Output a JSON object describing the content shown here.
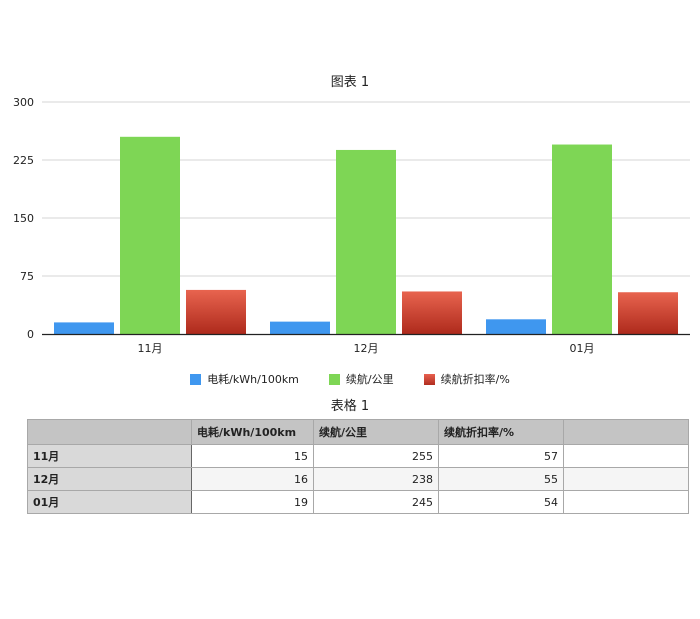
{
  "chart_data": {
    "type": "bar",
    "title": "图表 1",
    "categories": [
      "11月",
      "12月",
      "01月"
    ],
    "series": [
      {
        "name": "电耗/kWh/100km",
        "values": [
          15,
          16,
          19
        ],
        "color": "#3f97ef"
      },
      {
        "name": "续航/公里",
        "values": [
          255,
          238,
          245
        ],
        "color": "#7ed655"
      },
      {
        "name": "续航折扣率/%",
        "values": [
          57,
          55,
          54
        ],
        "color": "#c9382a"
      }
    ],
    "ylim": [
      0,
      300
    ],
    "yticks": [
      "0",
      "75",
      "150",
      "225",
      "300"
    ],
    "xlabel": "",
    "ylabel": "",
    "grid": true,
    "legend_position": "bottom"
  },
  "table": {
    "title": "表格 1",
    "headers": [
      "",
      "电耗/kWh/100km",
      "续航/公里",
      "续航折扣率/%",
      ""
    ],
    "rows": [
      {
        "label": "11月",
        "cells": [
          "15",
          "255",
          "57",
          ""
        ]
      },
      {
        "label": "12月",
        "cells": [
          "16",
          "238",
          "55",
          ""
        ]
      },
      {
        "label": "01月",
        "cells": [
          "19",
          "245",
          "54",
          ""
        ]
      }
    ]
  }
}
